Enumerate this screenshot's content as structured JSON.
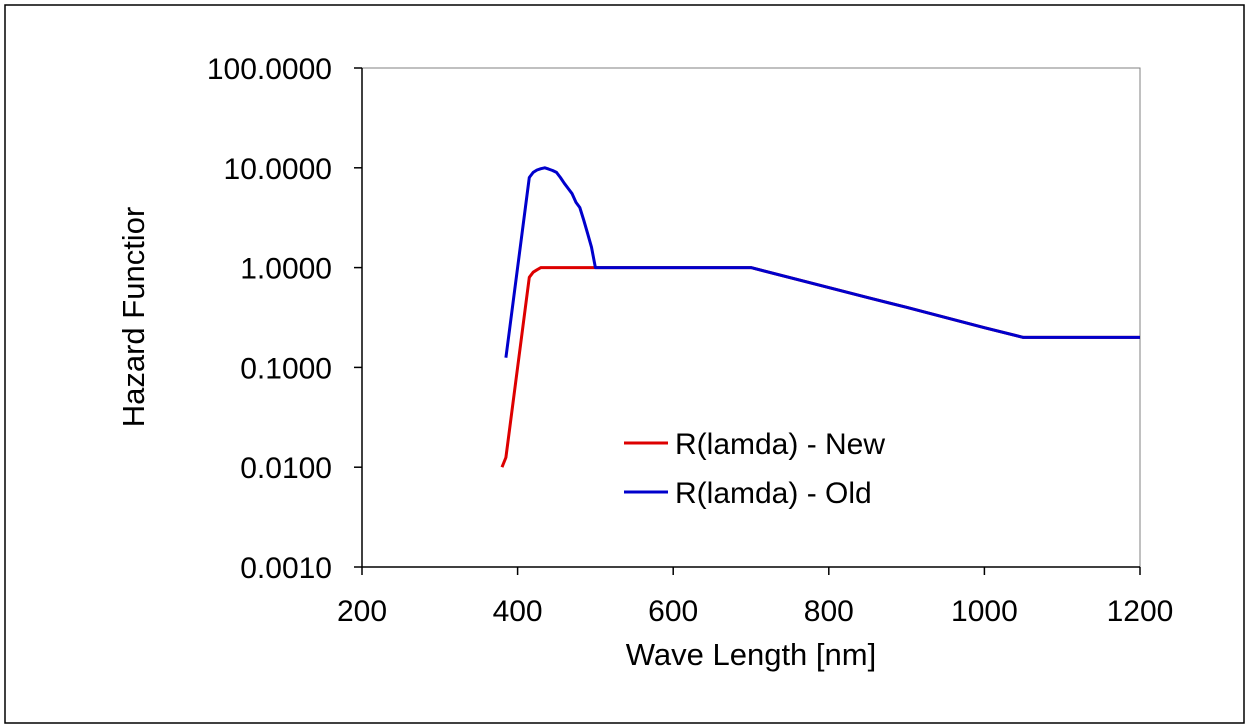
{
  "chart_data": {
    "type": "line",
    "title": "",
    "xlabel": "Wave Length [nm]",
    "ylabel": "Hazard Functior",
    "xlim": [
      200,
      1200
    ],
    "ylim": [
      0.001,
      100
    ],
    "yscale": "log",
    "grid": false,
    "legend_position": "center-right",
    "x_ticks": [
      200,
      400,
      600,
      800,
      1000,
      1200
    ],
    "x_tick_labels": [
      "200",
      "400",
      "600",
      "800",
      "1000",
      "1200"
    ],
    "y_ticks": [
      0.001,
      0.01,
      0.1,
      1,
      10,
      100
    ],
    "y_tick_labels": [
      "0.0010",
      "0.0100",
      "0.1000",
      "1.0000",
      "10.0000",
      "100.0000"
    ],
    "series": [
      {
        "name": "R(lamda) - New",
        "color": "#dd0000",
        "x": [
          380,
          385,
          390,
          395,
          400,
          405,
          410,
          415,
          420,
          425,
          430,
          435,
          440,
          450,
          500,
          600,
          700,
          800,
          850,
          900,
          1000,
          1050,
          1100,
          1200
        ],
        "y": [
          0.01,
          0.0125,
          0.025,
          0.05,
          0.1,
          0.2,
          0.4,
          0.8,
          0.9,
          0.95,
          1.0,
          1.0,
          1.0,
          1.0,
          1.0,
          1.0,
          1.0,
          0.63,
          0.5,
          0.4,
          0.25,
          0.2,
          0.2,
          0.2
        ]
      },
      {
        "name": "R(lamda) - Old",
        "color": "#0000cc",
        "x": [
          385,
          390,
          395,
          400,
          405,
          410,
          415,
          420,
          425,
          430,
          435,
          440,
          445,
          450,
          455,
          460,
          465,
          470,
          475,
          480,
          485,
          490,
          495,
          500,
          600,
          700,
          800,
          850,
          900,
          1000,
          1050,
          1100,
          1200
        ],
        "y": [
          0.125,
          0.25,
          0.5,
          1.0,
          2.0,
          4.0,
          8.0,
          9.0,
          9.5,
          9.8,
          10.0,
          9.7,
          9.4,
          9.0,
          8.0,
          7.0,
          6.2,
          5.5,
          4.5,
          4.0,
          3.0,
          2.2,
          1.6,
          1.0,
          1.0,
          1.0,
          0.63,
          0.5,
          0.4,
          0.25,
          0.2,
          0.2,
          0.2
        ]
      }
    ]
  }
}
